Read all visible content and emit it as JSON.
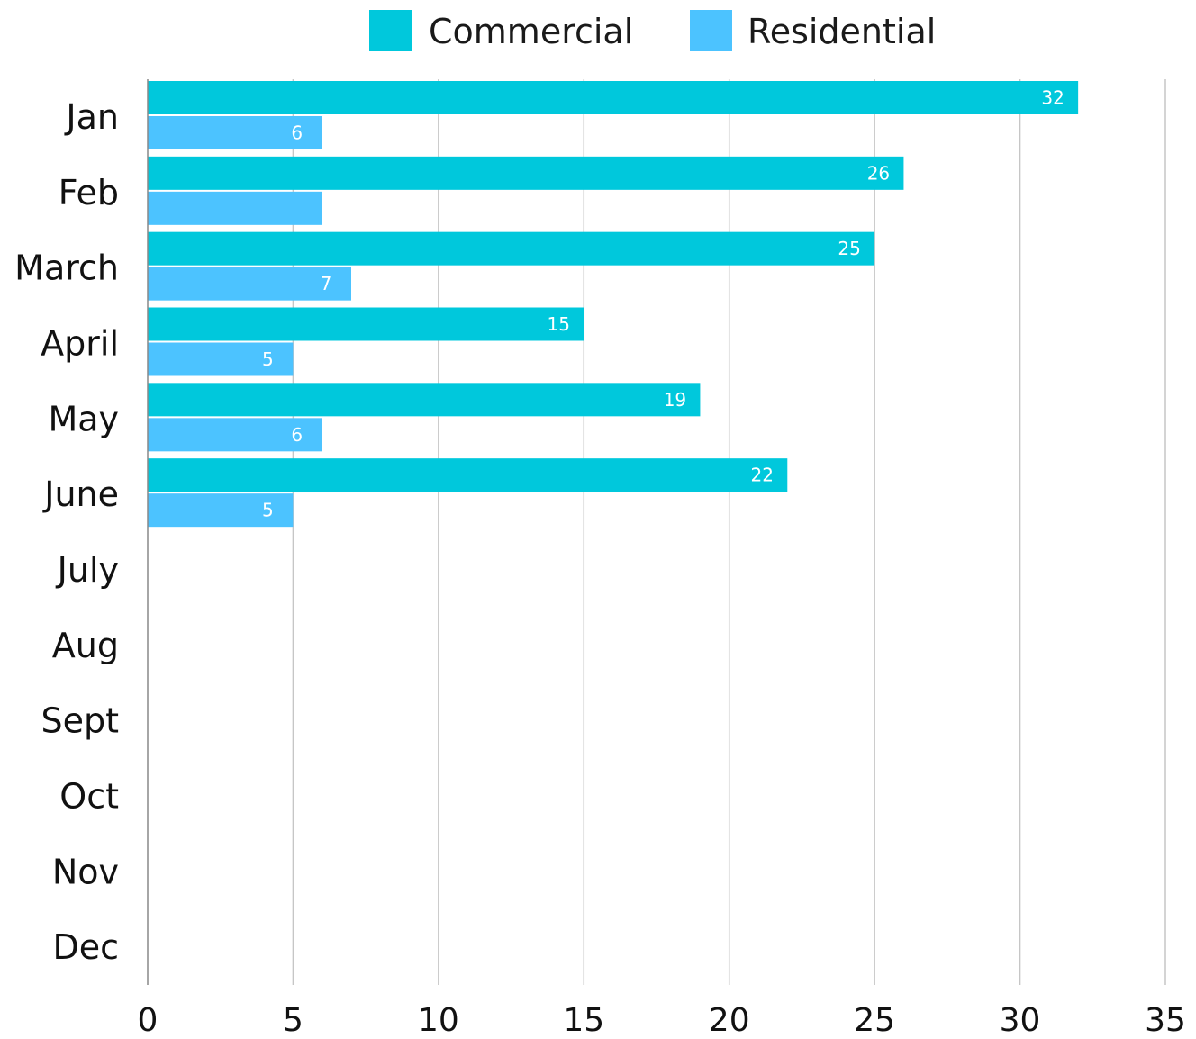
{
  "chart_data": {
    "type": "bar",
    "orientation": "horizontal",
    "categories": [
      "Jan",
      "Feb",
      "March",
      "April",
      "May",
      "June",
      "July",
      "Aug",
      "Sept",
      "Oct",
      "Nov",
      "Dec"
    ],
    "series": [
      {
        "name": "Commercial",
        "color": "#00c8dc",
        "values": [
          32,
          26,
          25,
          15,
          19,
          22,
          null,
          null,
          null,
          null,
          null,
          null
        ],
        "labels": [
          "32",
          "26",
          "25",
          "15",
          "19",
          "22",
          "",
          "",
          "",
          "",
          "",
          ""
        ]
      },
      {
        "name": "Residential",
        "color": "#4cc3ff",
        "values": [
          6,
          6,
          7,
          5,
          6,
          5,
          null,
          null,
          null,
          null,
          null,
          null
        ],
        "labels": [
          "6",
          "",
          "7",
          "5",
          "6",
          "5",
          "",
          "",
          "",
          "",
          "",
          ""
        ]
      }
    ],
    "xlim": [
      0,
      35
    ],
    "xticks": [
      "0",
      "5",
      "10",
      "15",
      "20",
      "25",
      "30",
      "35"
    ],
    "xtick_values": [
      0,
      5,
      10,
      15,
      20,
      25,
      30,
      35
    ],
    "grid": "vertical",
    "legend_position": "top-center",
    "title": "",
    "xlabel": "",
    "ylabel": ""
  }
}
